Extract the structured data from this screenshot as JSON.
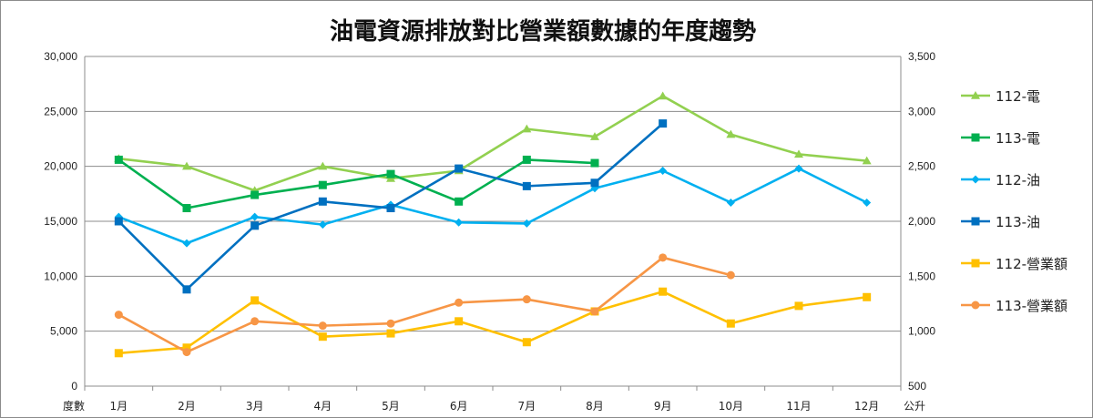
{
  "chart_data": {
    "type": "line",
    "title": "油電資源排放對比營業額數據的年度趨勢",
    "left_axis_unit": "度數",
    "right_axis_unit": "公升",
    "categories": [
      "1月",
      "2月",
      "3月",
      "4月",
      "5月",
      "6月",
      "7月",
      "8月",
      "9月",
      "10月",
      "11月",
      "12月"
    ],
    "ylim_left": [
      0,
      30000
    ],
    "yticks_left": [
      0,
      5000,
      10000,
      15000,
      20000,
      25000,
      30000
    ],
    "yticklabels_left": [
      "0",
      "5,000",
      "10,000",
      "15,000",
      "20,000",
      "25,000",
      "30,000"
    ],
    "ylim_right": [
      500,
      3500
    ],
    "yticks_right": [
      500,
      1000,
      1500,
      2000,
      2500,
      3000,
      3500
    ],
    "yticklabels_right": [
      "500",
      "1,000",
      "1,500",
      "2,000",
      "2,500",
      "3,000",
      "3,500"
    ],
    "grid": true,
    "legend_position": "right",
    "series": [
      {
        "name": "112-電",
        "color": "#92d050",
        "marker": "triangle",
        "axis": "left",
        "values": [
          20700,
          20000,
          17800,
          20000,
          18900,
          19600,
          23400,
          22700,
          26400,
          22900,
          21100,
          20500
        ]
      },
      {
        "name": "113-電",
        "color": "#00b050",
        "marker": "square",
        "axis": "left",
        "values": [
          20600,
          16200,
          17400,
          18300,
          19300,
          16800,
          20600,
          20300,
          null,
          null,
          null,
          null
        ]
      },
      {
        "name": "112-油",
        "color": "#00b0f0",
        "marker": "diamond",
        "axis": "right",
        "values": [
          2040,
          1800,
          2040,
          1970,
          2150,
          1990,
          1980,
          2300,
          2460,
          2170,
          2480,
          2170
        ]
      },
      {
        "name": "113-油",
        "color": "#0070c0",
        "marker": "square",
        "axis": "right",
        "values": [
          2000,
          1380,
          1960,
          2180,
          2120,
          2480,
          2320,
          2350,
          2890,
          null,
          null,
          null
        ]
      },
      {
        "name": "112-營業額",
        "color": "#ffc000",
        "marker": "square",
        "axis": "left",
        "values": [
          3000,
          3500,
          7800,
          4500,
          4800,
          5900,
          4000,
          6800,
          8600,
          5700,
          7300,
          8100
        ]
      },
      {
        "name": "113-營業額",
        "color": "#f79646",
        "marker": "circle",
        "axis": "left",
        "values": [
          6500,
          3100,
          5900,
          5500,
          5700,
          7600,
          7900,
          6800,
          11700,
          10100,
          null,
          null
        ]
      }
    ]
  }
}
